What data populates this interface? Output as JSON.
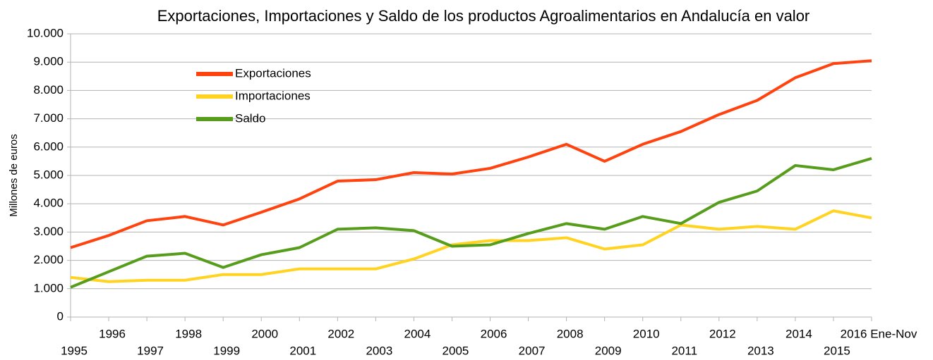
{
  "chart_data": {
    "type": "line",
    "title": "Exportaciones, Importaciones y Saldo de los productos Agroalimentarios en Andalucía en valor",
    "y_label": "Millones de euros",
    "categories": [
      "1995",
      "1996",
      "1997",
      "1998",
      "1999",
      "2000",
      "2001",
      "2002",
      "2003",
      "2004",
      "2005",
      "2006",
      "2007",
      "2008",
      "2009",
      "2010",
      "2011",
      "2012",
      "2013",
      "2014",
      "2015",
      "2016 Ene-Nov"
    ],
    "series": [
      {
        "name": "Exportaciones",
        "color": "#ff420e",
        "values": [
          2450,
          2880,
          3400,
          3550,
          3250,
          3700,
          4170,
          4800,
          4850,
          5100,
          5050,
          5250,
          5650,
          6100,
          5500,
          6100,
          6550,
          7150,
          7650,
          8450,
          8950,
          9050
        ]
      },
      {
        "name": "Importaciones",
        "color": "#ffd320",
        "values": [
          1400,
          1250,
          1300,
          1300,
          1500,
          1500,
          1700,
          1700,
          1700,
          2050,
          2550,
          2700,
          2700,
          2800,
          2400,
          2550,
          3250,
          3100,
          3200,
          3100,
          3750,
          3500
        ]
      },
      {
        "name": "Saldo",
        "color": "#579d1c",
        "values": [
          1050,
          1600,
          2150,
          2250,
          1750,
          2200,
          2450,
          3100,
          3150,
          3050,
          2500,
          2550,
          2950,
          3300,
          3100,
          3550,
          3300,
          4050,
          4450,
          5350,
          5200,
          5600
        ]
      }
    ],
    "ylim": [
      0,
      10000
    ],
    "yticks": [
      0,
      {
        "value": 1000,
        "label": "1.000"
      },
      {
        "value": 2000,
        "label": "2.000"
      },
      {
        "value": 3000,
        "label": "3.000"
      },
      {
        "value": 4000,
        "label": "4.000"
      },
      {
        "value": 5000,
        "label": "5.000"
      },
      {
        "value": 6000,
        "label": "6.000"
      },
      {
        "value": 7000,
        "label": "7.000"
      },
      {
        "value": 8000,
        "label": "8.000"
      },
      {
        "value": 9000,
        "label": "9.000"
      },
      {
        "value": 10000,
        "label": "10.000"
      }
    ],
    "grid": true
  }
}
